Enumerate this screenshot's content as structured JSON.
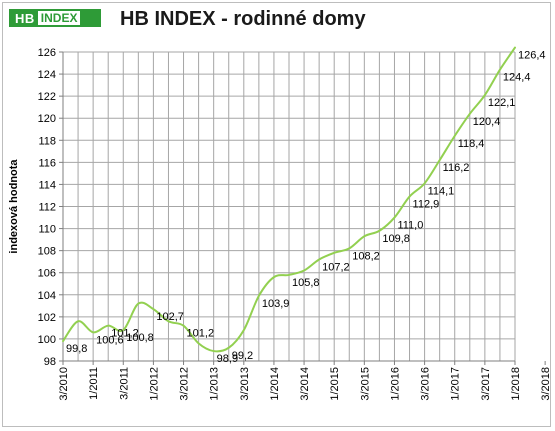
{
  "logo": {
    "part1": "HB",
    "part2": "INDEX"
  },
  "chart_data": {
    "type": "line",
    "title": "HB INDEX - rodinné domy",
    "ylabel": "indexová hodnota",
    "xlabel": "",
    "ylim": [
      98,
      126
    ],
    "ytick_step": 2,
    "grid": true,
    "x_tick_labels": [
      "3/2010",
      "1/2011",
      "3/2011",
      "1/2012",
      "3/2012",
      "1/2013",
      "3/2013",
      "1/2014",
      "3/2014",
      "1/2015",
      "3/2015",
      "1/2016",
      "3/2016",
      "1/2017",
      "3/2017",
      "1/2018",
      "3/2018"
    ],
    "series": [
      {
        "color": "#92d050",
        "points": [
          {
            "x": 0,
            "y": 99.8,
            "label": "99,8"
          },
          {
            "x": 1,
            "y": 101.6
          },
          {
            "x": 2,
            "y": 100.6,
            "label": "100,6"
          },
          {
            "x": 3,
            "y": 101.2,
            "label": "101,2"
          },
          {
            "x": 4,
            "y": 100.8,
            "label": "100,8"
          },
          {
            "x": 5,
            "y": 103.2
          },
          {
            "x": 6,
            "y": 102.7,
            "label": "102,7"
          },
          {
            "x": 7,
            "y": 101.6
          },
          {
            "x": 8,
            "y": 101.2,
            "label": "101,2"
          },
          {
            "x": 9,
            "y": 99.6
          },
          {
            "x": 10,
            "y": 98.9,
            "label": "98,9"
          },
          {
            "x": 11,
            "y": 99.2,
            "label": "99,2"
          },
          {
            "x": 12,
            "y": 100.8
          },
          {
            "x": 13,
            "y": 103.9,
            "label": "103,9"
          },
          {
            "x": 14,
            "y": 105.6
          },
          {
            "x": 15,
            "y": 105.8,
            "label": "105,8"
          },
          {
            "x": 16,
            "y": 106.2
          },
          {
            "x": 17,
            "y": 107.2,
            "label": "107,2"
          },
          {
            "x": 18,
            "y": 107.8
          },
          {
            "x": 19,
            "y": 108.2,
            "label": "108,2"
          },
          {
            "x": 20,
            "y": 109.3
          },
          {
            "x": 21,
            "y": 109.8,
            "label": "109,8"
          },
          {
            "x": 22,
            "y": 111.0,
            "label": "111,0"
          },
          {
            "x": 23,
            "y": 112.9,
            "label": "112,9"
          },
          {
            "x": 24,
            "y": 114.1,
            "label": "114,1"
          },
          {
            "x": 25,
            "y": 116.2,
            "label": "116,2"
          },
          {
            "x": 26,
            "y": 118.4,
            "label": "118,4"
          },
          {
            "x": 27,
            "y": 120.4,
            "label": "120,4"
          },
          {
            "x": 28,
            "y": 122.1,
            "label": "122,1"
          },
          {
            "x": 29,
            "y": 124.4,
            "label": "124,4"
          },
          {
            "x": 30,
            "y": 126.4,
            "label": "126,4"
          }
        ]
      }
    ]
  }
}
